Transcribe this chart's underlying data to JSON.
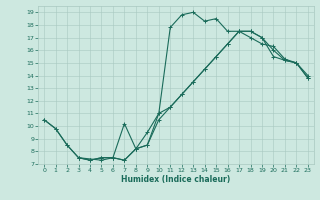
{
  "xlabel": "Humidex (Indice chaleur)",
  "xlim": [
    -0.5,
    23.5
  ],
  "ylim": [
    7,
    19.5
  ],
  "xticks": [
    0,
    1,
    2,
    3,
    4,
    5,
    6,
    7,
    8,
    9,
    10,
    11,
    12,
    13,
    14,
    15,
    16,
    17,
    18,
    19,
    20,
    21,
    22,
    23
  ],
  "yticks": [
    7,
    8,
    9,
    10,
    11,
    12,
    13,
    14,
    15,
    16,
    17,
    18,
    19
  ],
  "bg_color": "#cde8e0",
  "line_color": "#1a6b5a",
  "grid_color": "#a8c8c0",
  "line1_x": [
    0,
    1,
    2,
    3,
    4,
    5,
    6,
    7,
    8,
    9,
    10,
    11,
    12,
    13,
    14,
    15,
    16,
    17,
    18,
    19,
    20,
    21,
    22,
    23
  ],
  "line1_y": [
    10.5,
    9.8,
    8.5,
    7.5,
    7.3,
    7.5,
    7.5,
    7.3,
    8.2,
    9.5,
    11.0,
    11.5,
    12.5,
    13.5,
    14.5,
    15.5,
    16.5,
    17.5,
    17.5,
    17.0,
    15.5,
    15.2,
    15.0,
    13.8
  ],
  "line2_x": [
    0,
    1,
    2,
    3,
    4,
    5,
    6,
    7,
    8,
    9,
    10,
    11,
    12,
    13,
    14,
    15,
    16,
    17,
    18,
    19,
    20,
    21,
    22,
    23
  ],
  "line2_y": [
    10.5,
    9.8,
    8.5,
    7.5,
    7.3,
    7.5,
    7.5,
    7.3,
    8.2,
    8.5,
    10.5,
    11.5,
    12.5,
    13.5,
    14.5,
    15.5,
    16.5,
    17.5,
    17.5,
    17.0,
    16.0,
    15.2,
    15.0,
    14.0
  ],
  "line3_x": [
    3,
    5,
    6,
    7,
    8,
    9,
    10,
    11,
    12,
    13,
    14,
    15,
    16,
    17,
    18,
    19,
    20,
    21,
    22,
    23
  ],
  "line3_y": [
    7.5,
    7.3,
    7.5,
    10.2,
    8.2,
    8.5,
    11.0,
    17.8,
    18.8,
    19.0,
    18.3,
    18.5,
    17.5,
    17.5,
    17.0,
    16.5,
    16.3,
    15.3,
    15.0,
    13.8
  ],
  "marker": "+",
  "markersize": 3,
  "linewidth": 0.8
}
